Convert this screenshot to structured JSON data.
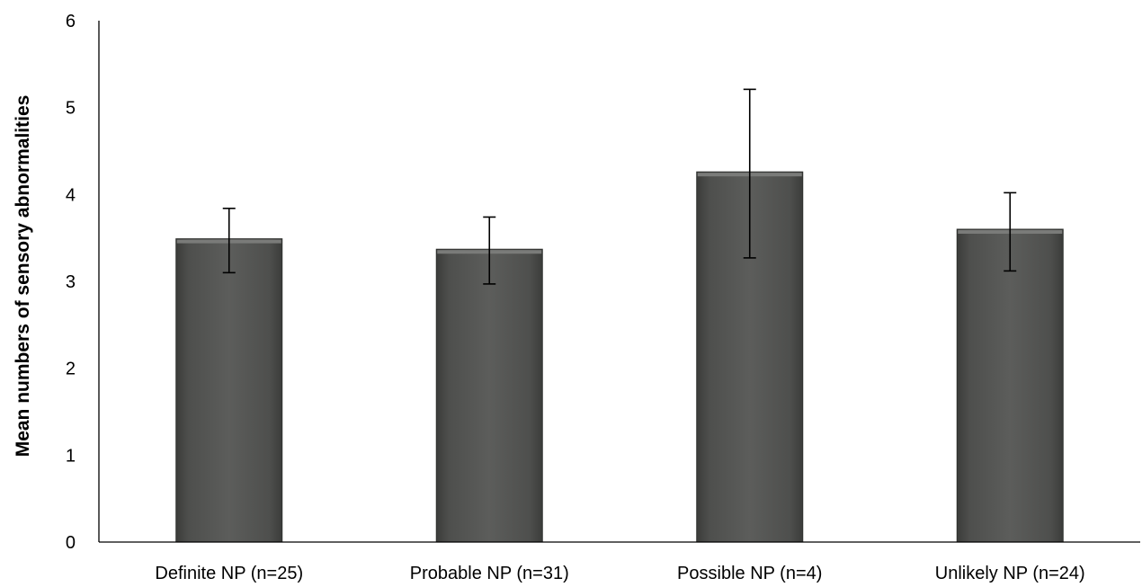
{
  "chart_data": {
    "type": "bar",
    "title": "",
    "xlabel": "",
    "ylabel": "Mean numbers of sensory abnormalities",
    "categories": [
      "Definite NP (n=25)",
      "Probable NP (n=31)",
      "Possible NP (n=4)",
      "Unlikely NP (n=24)"
    ],
    "values": [
      3.49,
      3.37,
      4.26,
      3.6
    ],
    "error_low": [
      3.1,
      2.97,
      3.27,
      3.12
    ],
    "error_high": [
      3.84,
      3.74,
      5.21,
      4.02
    ],
    "ylim": [
      0,
      6
    ],
    "yticks": [
      "0",
      "1",
      "2",
      "3",
      "4",
      "5",
      "6"
    ],
    "grid": false,
    "legend": "none",
    "colors": {
      "bar": "#595a58",
      "bar_edge": "#2f302e",
      "axis": "#000000"
    }
  }
}
